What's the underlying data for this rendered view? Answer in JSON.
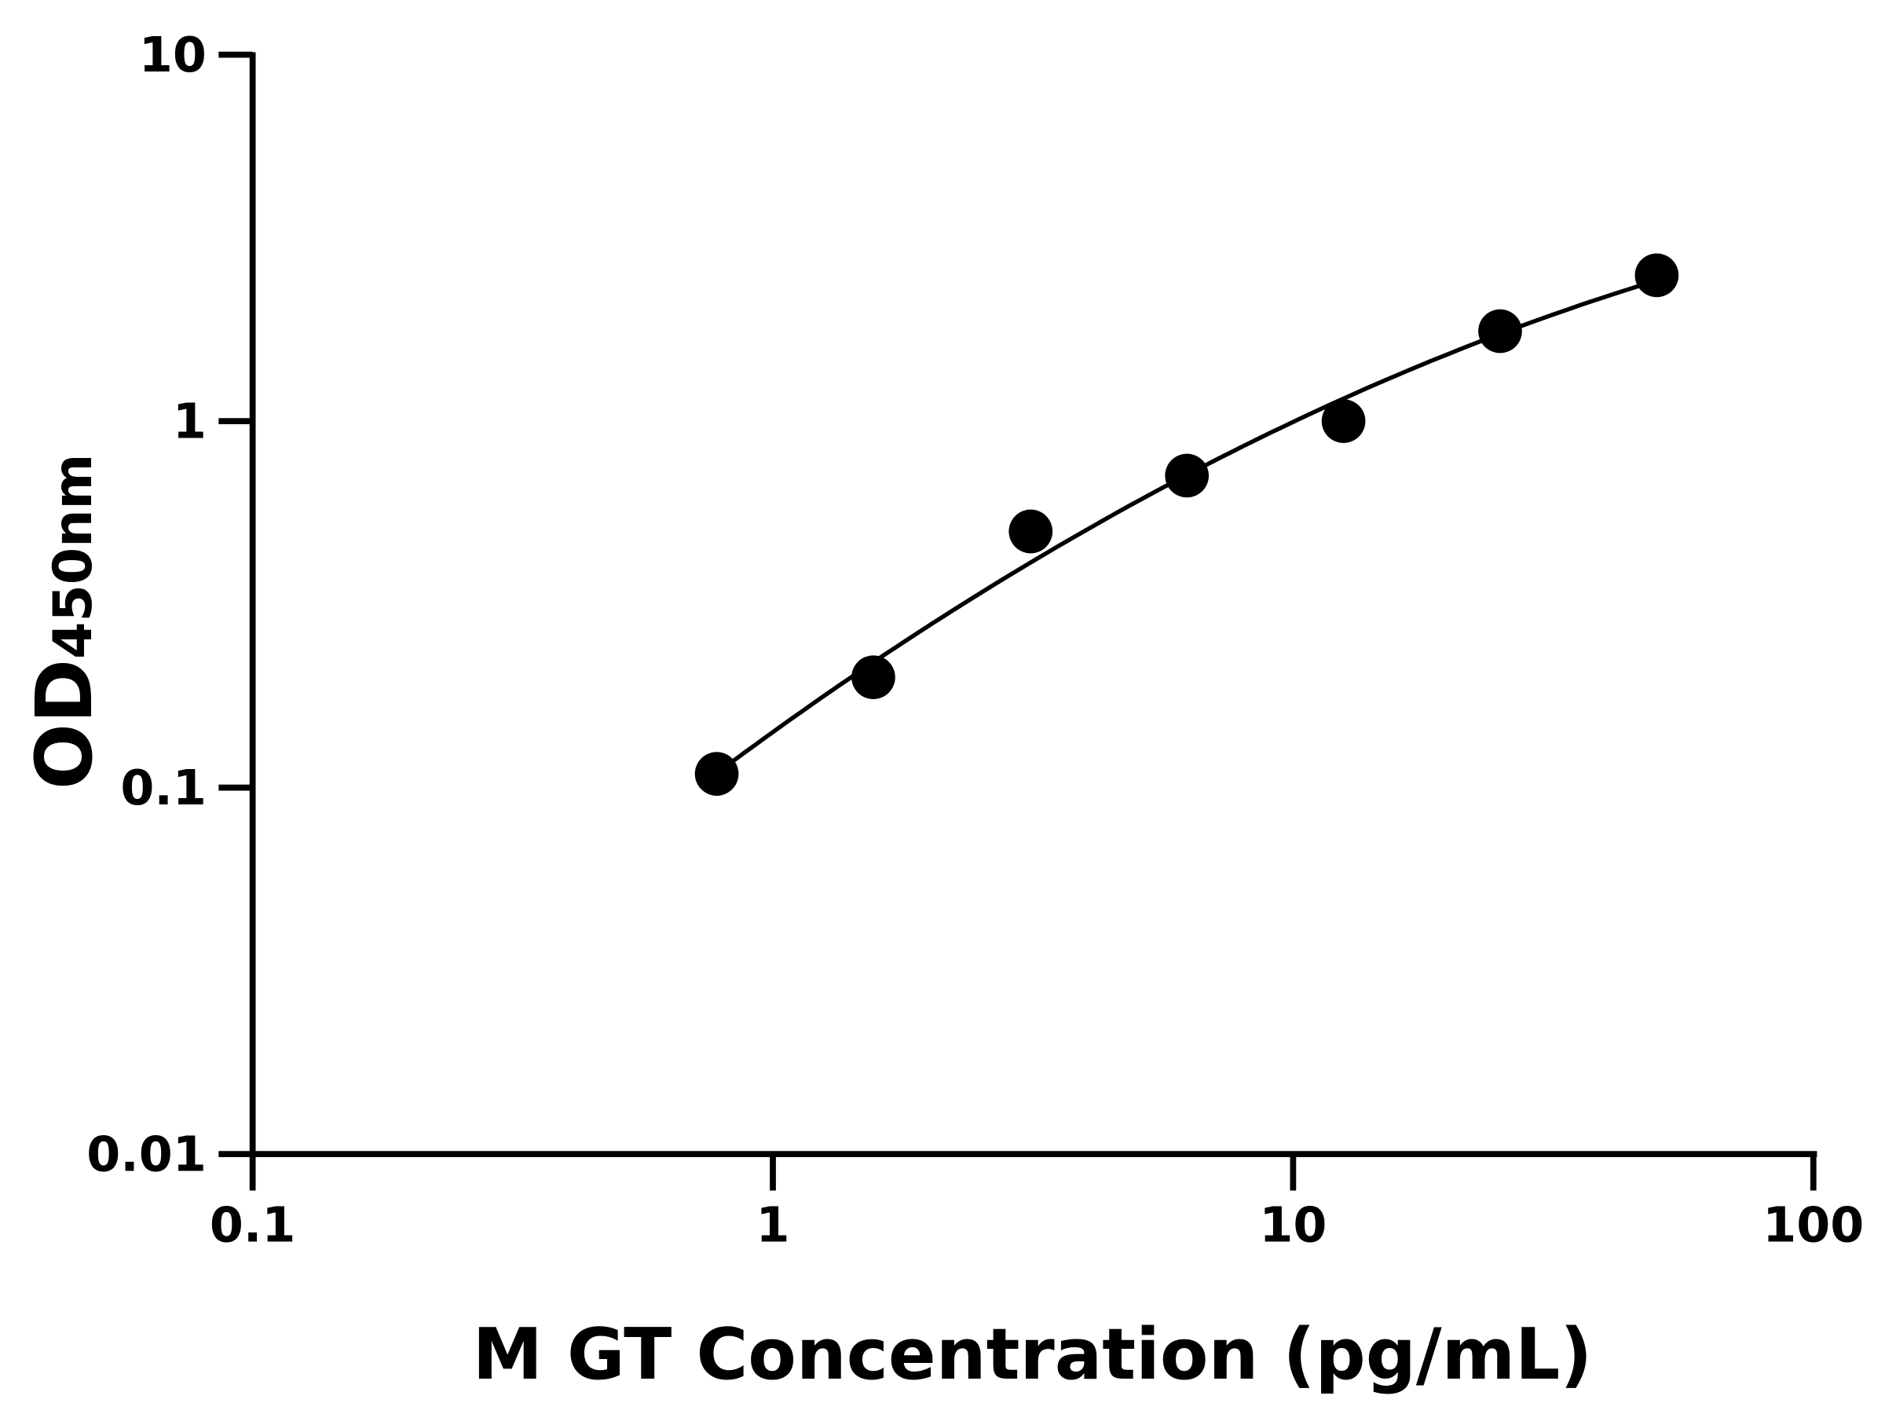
{
  "chart_data": {
    "type": "scatter",
    "title": "",
    "xlabel": "M GT Concentration (pg/mL)",
    "ylabel_main": "OD",
    "ylabel_sub": "450nm",
    "x_scale": "log",
    "y_scale": "log",
    "xlim": [
      0.1,
      100
    ],
    "ylim": [
      0.01,
      10
    ],
    "x_ticks": [
      0.1,
      1,
      10,
      100
    ],
    "x_tick_labels": [
      "0.1",
      "1",
      "10",
      "100"
    ],
    "y_ticks": [
      0.01,
      0.1,
      1,
      10
    ],
    "y_tick_labels": [
      "0.01",
      "0.1",
      "1",
      "10"
    ],
    "grid": false,
    "legend": "none",
    "series": [
      {
        "x": [
          0.78,
          1.56,
          3.13,
          6.25,
          12.5,
          25,
          50
        ],
        "y": [
          0.109,
          0.2,
          0.5,
          0.71,
          1.0,
          1.76,
          2.5
        ],
        "marker_color": "#000000",
        "fit_line": true
      }
    ]
  }
}
